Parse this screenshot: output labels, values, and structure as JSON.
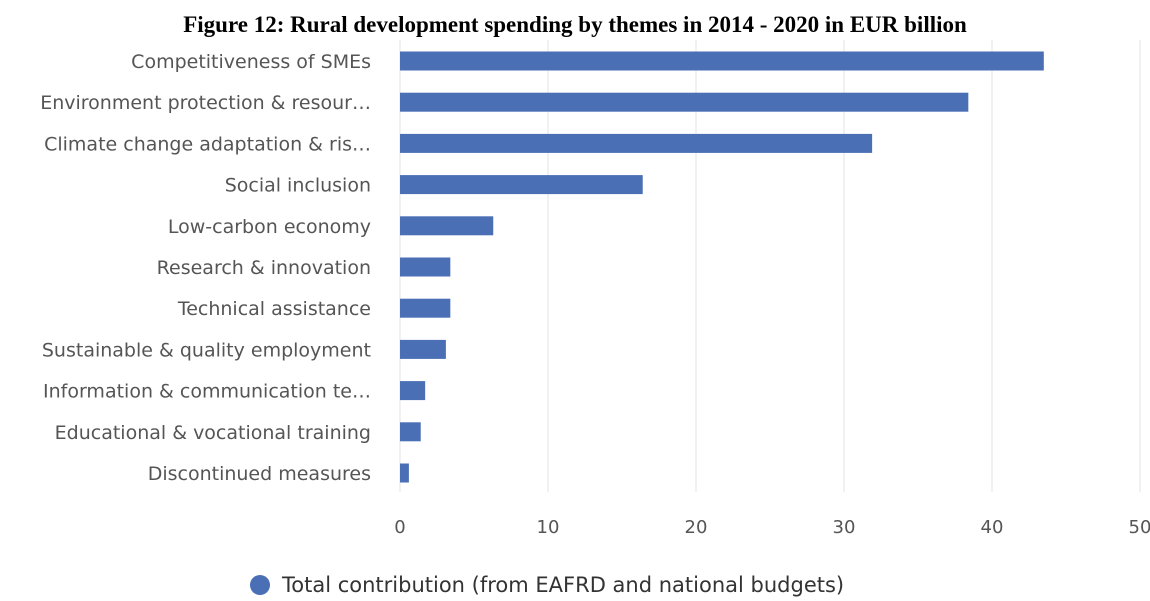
{
  "chart_data": {
    "type": "bar",
    "orientation": "horizontal",
    "title": "Figure 12: Rural development spending by themes in 2014 - 2020 in EUR billion",
    "categories": [
      "Competitiveness of SMEs",
      "Environment protection & resour…",
      "Climate change adaptation & ris…",
      "Social inclusion",
      "Low-carbon economy",
      "Research & innovation",
      "Technical assistance",
      "Sustainable & quality employment",
      "Information & communication te…",
      "Educational & vocational training",
      "Discontinued measures"
    ],
    "series": [
      {
        "name": "Total contribution (from EAFRD and national budgets)",
        "color": "#4a6fb5",
        "values": [
          43.5,
          38.4,
          31.9,
          16.4,
          6.3,
          3.4,
          3.4,
          3.1,
          1.7,
          1.4,
          0.6
        ]
      }
    ],
    "xlim": [
      0,
      50
    ],
    "xticks": [
      "0",
      "10",
      "20",
      "30",
      "40",
      "50"
    ],
    "grid": true,
    "legend_position": "bottom-center"
  }
}
